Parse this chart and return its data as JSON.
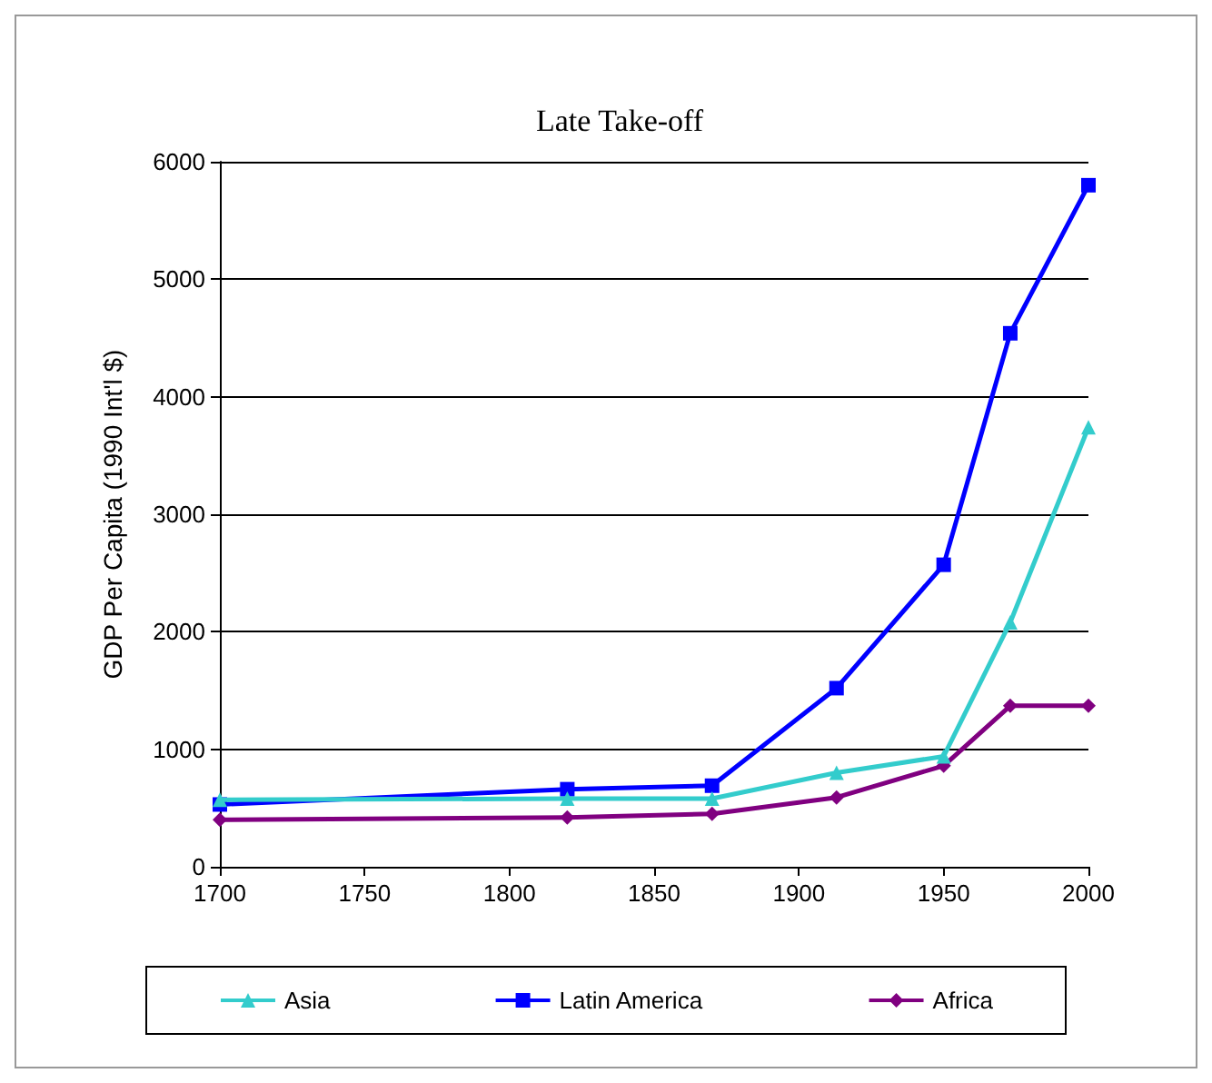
{
  "chart_data": {
    "type": "line",
    "title": "Late Take-off",
    "ylabel": "GDP Per Capita (1990 Int'l $)",
    "x": [
      1700,
      1820,
      1870,
      1913,
      1950,
      1973,
      2000
    ],
    "xlim": [
      1700,
      2000
    ],
    "xticks": [
      1700,
      1750,
      1800,
      1850,
      1900,
      1950,
      2000
    ],
    "ylim": [
      0,
      6000
    ],
    "yticks": [
      0,
      1000,
      2000,
      3000,
      4000,
      5000,
      6000
    ],
    "grid": "y",
    "legend": "bottom",
    "line_style": "solid",
    "series": [
      {
        "name": "Asia",
        "color": "#33cccc",
        "marker": "triangle",
        "values": [
          570,
          580,
          580,
          800,
          940,
          2080,
          3740
        ]
      },
      {
        "name": "Latin America",
        "color": "#0000ff",
        "marker": "square",
        "values": [
          530,
          660,
          690,
          1520,
          2570,
          4540,
          5800
        ]
      },
      {
        "name": "Africa",
        "color": "#800080",
        "marker": "diamond",
        "values": [
          400,
          420,
          450,
          590,
          860,
          1370,
          1370
        ]
      }
    ]
  }
}
